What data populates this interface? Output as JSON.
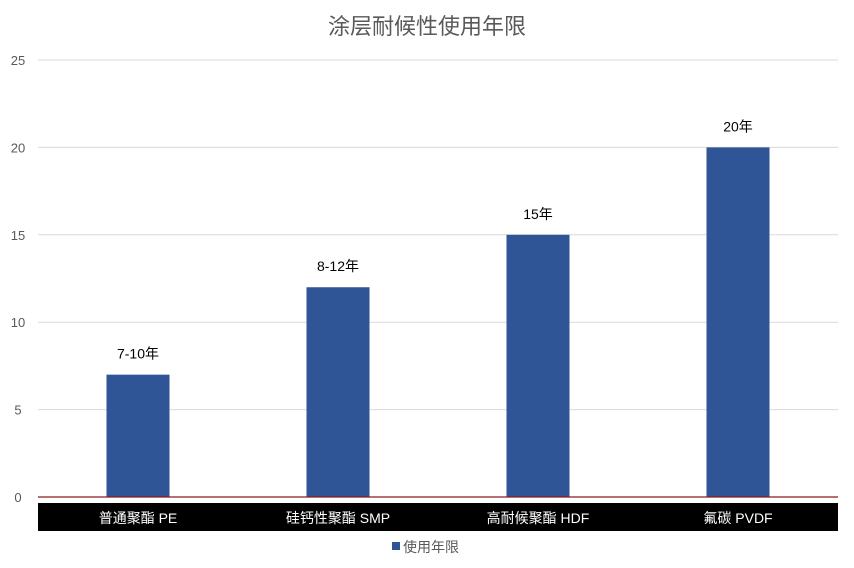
{
  "chart_data": {
    "type": "bar",
    "title": "涂层耐候性使用年限",
    "categories": [
      "普通聚酯 PE",
      "硅钙性聚酯 SMP",
      "高耐候聚酯 HDF",
      "氟碳 PVDF"
    ],
    "series": [
      {
        "name": "使用年限",
        "values": [
          7,
          12,
          15,
          20
        ],
        "data_labels": [
          "7-10年",
          "8-12年",
          "15年",
          "20年"
        ],
        "color": "#2F5597"
      }
    ],
    "yticks": [
      "0",
      "5",
      "10",
      "15",
      "20",
      "25"
    ],
    "ylim": [
      0,
      25
    ],
    "grid": true,
    "legend": "bottom",
    "category_band_color": "#000000",
    "axis_line_color": "#8B1A1A"
  }
}
